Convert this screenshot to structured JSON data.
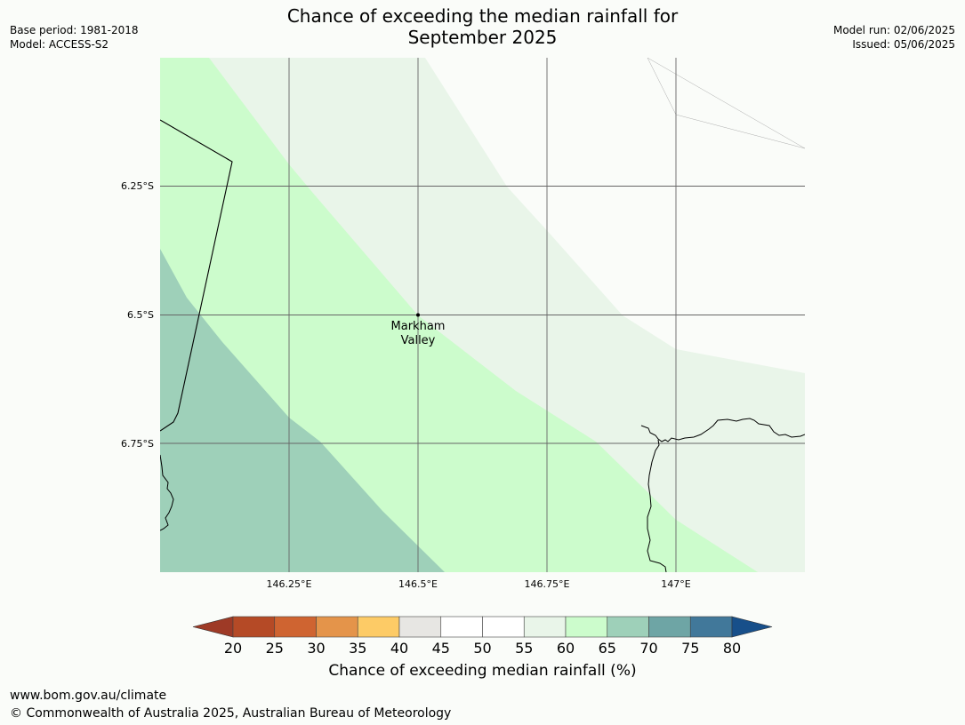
{
  "title_line1": "Chance of exceeding the median rainfall for",
  "title_line2": "September 2025",
  "meta_left": {
    "base_period": "Base period: 1981-2018",
    "model": "Model: ACCESS-S2"
  },
  "meta_right": {
    "model_run": "Model run: 02/06/2025",
    "issued": "Issued: 05/06/2025"
  },
  "map": {
    "lat_labels": [
      "6.25°S",
      "6.5°S",
      "6.75°S"
    ],
    "lon_labels": [
      "146.25°E",
      "146.5°E",
      "146.75°E",
      "147°E"
    ],
    "place": {
      "name_line1": "Markham",
      "name_line2": "Valley"
    },
    "zone_colors": {
      "65-70": "#9ed0b9",
      "60-65": "#ccfccc",
      "55-60": "#e9f5e9",
      "50-55": "#fafcf9"
    }
  },
  "colorbar": {
    "label": "Chance of exceeding median rainfall (%)",
    "ticks": [
      "20",
      "25",
      "30",
      "35",
      "40",
      "45",
      "50",
      "55",
      "60",
      "65",
      "70",
      "75",
      "80"
    ],
    "colors": [
      "#9e3a26",
      "#b54a26",
      "#cf6431",
      "#e4944a",
      "#fdcb66",
      "#e7e6e3",
      "#ffffff",
      "#ffffff",
      "#e9f5e9",
      "#ccfccc",
      "#9ed0b9",
      "#6ea5a5",
      "#41789a",
      "#174f8a"
    ]
  },
  "footer": {
    "url": "www.bom.gov.au/climate",
    "copyright": "© Commonwealth of Australia 2025, Australian Bureau of Meteorology"
  }
}
